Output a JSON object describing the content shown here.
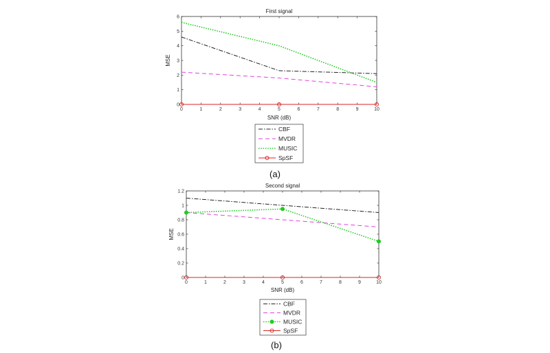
{
  "chart_data": [
    {
      "type": "line",
      "title": "First signal",
      "xlabel": "SNR (dB)",
      "ylabel": "MSE",
      "caption": "(a)",
      "xlim": [
        0,
        10
      ],
      "ylim": [
        0,
        6
      ],
      "xticks": [
        0,
        1,
        2,
        3,
        4,
        5,
        6,
        7,
        8,
        9,
        10
      ],
      "yticks": [
        0,
        1,
        2,
        3,
        4,
        5,
        6
      ],
      "legend_position": "below",
      "x": [
        0,
        5,
        10
      ],
      "series": [
        {
          "name": "CBF",
          "values": [
            4.6,
            2.3,
            2.1
          ],
          "color": "#222222",
          "dash": "dashdot",
          "marker": "none"
        },
        {
          "name": "MVDR",
          "values": [
            2.2,
            1.8,
            1.2
          ],
          "color": "#e040e0",
          "dash": "dash",
          "marker": "none"
        },
        {
          "name": "MUSIC",
          "values": [
            5.6,
            4.0,
            1.5
          ],
          "color": "#22cc22",
          "dash": "dot",
          "marker": "none"
        },
        {
          "name": "SpSF",
          "values": [
            0,
            0,
            0
          ],
          "color": "#dd2222",
          "dash": "solid",
          "marker": "circle"
        }
      ]
    },
    {
      "type": "line",
      "title": "Second signal",
      "xlabel": "SNR (dB)",
      "ylabel": "MSE",
      "caption": "(b)",
      "xlim": [
        0,
        10
      ],
      "ylim": [
        0,
        1.2
      ],
      "xticks": [
        0,
        1,
        2,
        3,
        4,
        5,
        6,
        7,
        8,
        9,
        10
      ],
      "yticks": [
        0,
        0.2,
        0.4,
        0.6,
        0.8,
        1,
        1.2
      ],
      "legend_position": "below",
      "x": [
        0,
        5,
        10
      ],
      "series": [
        {
          "name": "CBF",
          "values": [
            1.1,
            1.0,
            0.9
          ],
          "color": "#222222",
          "dash": "dashdot",
          "marker": "none"
        },
        {
          "name": "MVDR",
          "values": [
            0.9,
            0.8,
            0.7
          ],
          "color": "#e040e0",
          "dash": "dash",
          "marker": "none"
        },
        {
          "name": "MUSIC",
          "values": [
            0.9,
            0.95,
            0.5
          ],
          "color": "#22cc22",
          "dash": "dot",
          "marker": "filled-circle"
        },
        {
          "name": "SpSF",
          "values": [
            0,
            0,
            0
          ],
          "color": "#dd2222",
          "dash": "solid",
          "marker": "circle"
        }
      ]
    }
  ]
}
